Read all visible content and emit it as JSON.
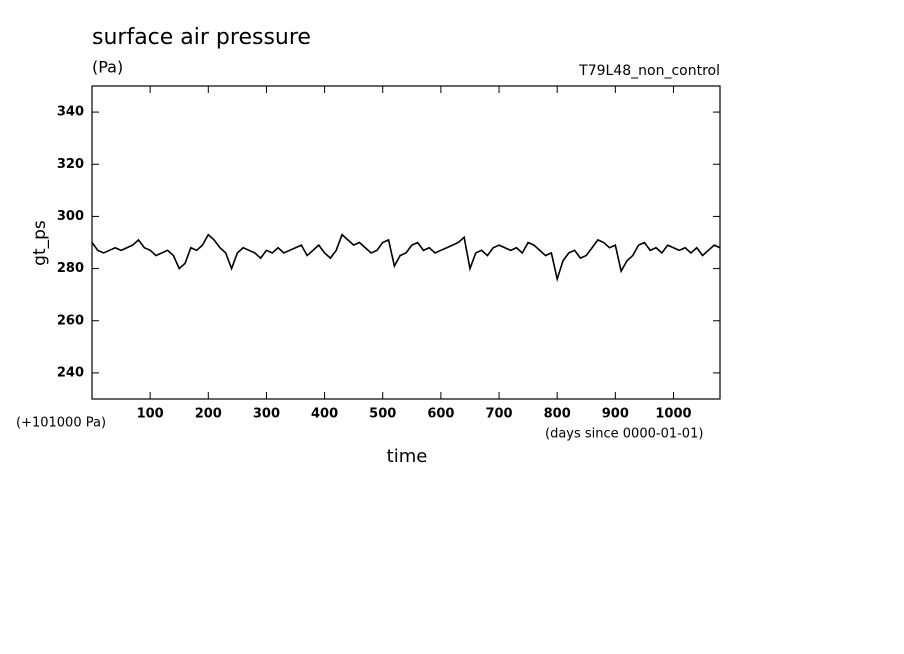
{
  "chart_data": {
    "type": "line",
    "title": "surface air pressure",
    "unit_label": "(Pa)",
    "subtitle": "T79L48_non_control",
    "y_label": "gt_ps",
    "y_offset_label": "(+101000 Pa)",
    "x_label": "time",
    "x_unit_label": "(days since 0000-01-01)",
    "xlim": [
      0,
      1080
    ],
    "ylim": [
      230,
      350
    ],
    "xticks": [
      100,
      200,
      300,
      400,
      500,
      600,
      700,
      800,
      900,
      1000
    ],
    "yticks": [
      240,
      260,
      280,
      300,
      320,
      340
    ],
    "color": "#000000",
    "x": [
      0,
      10,
      20,
      30,
      40,
      50,
      60,
      70,
      80,
      90,
      100,
      110,
      120,
      130,
      140,
      150,
      160,
      170,
      180,
      190,
      200,
      210,
      220,
      230,
      240,
      250,
      260,
      270,
      280,
      290,
      300,
      310,
      320,
      330,
      340,
      350,
      360,
      370,
      380,
      390,
      400,
      410,
      420,
      430,
      440,
      450,
      460,
      470,
      480,
      490,
      500,
      510,
      520,
      530,
      540,
      550,
      560,
      570,
      580,
      590,
      600,
      610,
      620,
      630,
      640,
      650,
      660,
      670,
      680,
      690,
      700,
      710,
      720,
      730,
      740,
      750,
      760,
      770,
      780,
      790,
      800,
      810,
      820,
      830,
      840,
      850,
      860,
      870,
      880,
      890,
      900,
      910,
      920,
      930,
      940,
      950,
      960,
      970,
      980,
      990,
      1000,
      1010,
      1020,
      1030,
      1040,
      1050,
      1060,
      1070,
      1080
    ],
    "values": [
      290,
      287,
      286,
      287,
      288,
      287,
      288,
      289,
      291,
      288,
      287,
      285,
      286,
      287,
      285,
      280,
      282,
      288,
      287,
      289,
      293,
      291,
      288,
      286,
      280,
      286,
      288,
      287,
      286,
      284,
      287,
      286,
      288,
      286,
      287,
      288,
      289,
      285,
      287,
      289,
      286,
      284,
      287,
      293,
      291,
      289,
      290,
      288,
      286,
      287,
      290,
      291,
      281,
      285,
      286,
      289,
      290,
      287,
      288,
      286,
      287,
      288,
      289,
      290,
      292,
      280,
      286,
      287,
      285,
      288,
      289,
      288,
      287,
      288,
      286,
      290,
      289,
      287,
      285,
      286,
      276,
      283,
      286,
      287,
      284,
      285,
      288,
      291,
      290,
      288,
      289,
      279,
      283,
      285,
      289,
      290,
      287,
      288,
      286,
      289,
      288,
      287,
      288,
      286,
      288,
      285,
      287,
      289,
      288
    ]
  }
}
